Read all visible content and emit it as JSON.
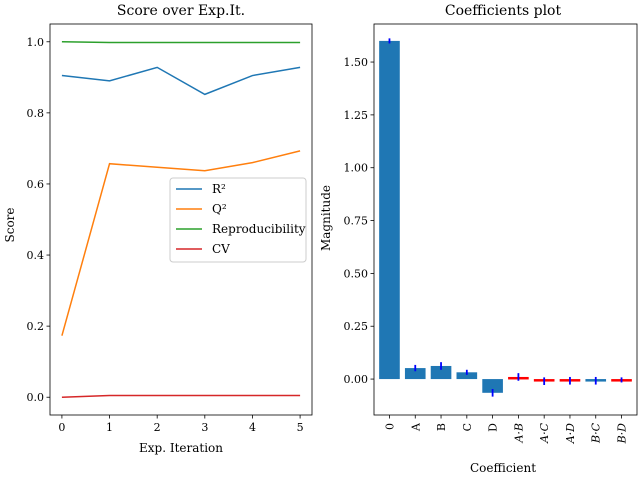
{
  "chart_data": [
    {
      "type": "line",
      "title": "Score over Exp.It.",
      "xlabel": "Exp.  Iteration",
      "ylabel": "Score",
      "x": [
        0,
        1,
        2,
        3,
        4,
        5
      ],
      "xlim": [
        -0.25,
        5.25
      ],
      "ylim": [
        -0.05,
        1.05
      ],
      "xticks": [
        "0",
        "1",
        "2",
        "3",
        "4",
        "5"
      ],
      "yticks": [
        "0.0",
        "0.2",
        "0.4",
        "0.6",
        "0.8",
        "1.0"
      ],
      "grid": false,
      "legend_position": "center-right",
      "series": [
        {
          "name": "R²",
          "color": "#1f77b4",
          "values": [
            0.905,
            0.89,
            0.928,
            0.852,
            0.905,
            0.928
          ]
        },
        {
          "name": "Q²",
          "color": "#ff7f0e",
          "values": [
            0.173,
            0.657,
            0.647,
            0.637,
            0.66,
            0.693
          ]
        },
        {
          "name": "Reproducibility",
          "color": "#2ca02c",
          "values": [
            1.0,
            0.998,
            0.998,
            0.998,
            0.998,
            0.998
          ]
        },
        {
          "name": "CV",
          "color": "#d62728",
          "values": [
            0.0,
            0.005,
            0.005,
            0.005,
            0.005,
            0.005
          ]
        }
      ]
    },
    {
      "type": "bar",
      "title": "Coefficients plot",
      "xlabel": "Coefficient",
      "ylabel": "Magnitude",
      "categories": [
        "0",
        "A",
        "B",
        "C",
        "D",
        "A·B",
        "A·C",
        "A·D",
        "B·C",
        "B·D"
      ],
      "values": [
        1.6,
        0.052,
        0.062,
        0.032,
        -0.065,
        0.01,
        -0.01,
        -0.008,
        -0.008,
        -0.004
      ],
      "errors": [
        0.012,
        0.015,
        0.018,
        0.012,
        0.018,
        0.018,
        0.018,
        0.018,
        0.018,
        0.012
      ],
      "bar_colors": [
        "#1f77b4",
        "#1f77b4",
        "#1f77b4",
        "#1f77b4",
        "#1f77b4",
        "#ff0000",
        "#ff0000",
        "#ff0000",
        "#1f77b4",
        "#ff0000"
      ],
      "error_color": "#0000ff",
      "ylim": [
        -0.17,
        1.68
      ],
      "yticks": [
        "0.00",
        "0.25",
        "0.50",
        "0.75",
        "1.00",
        "1.25",
        "1.50"
      ],
      "grid": false
    }
  ]
}
